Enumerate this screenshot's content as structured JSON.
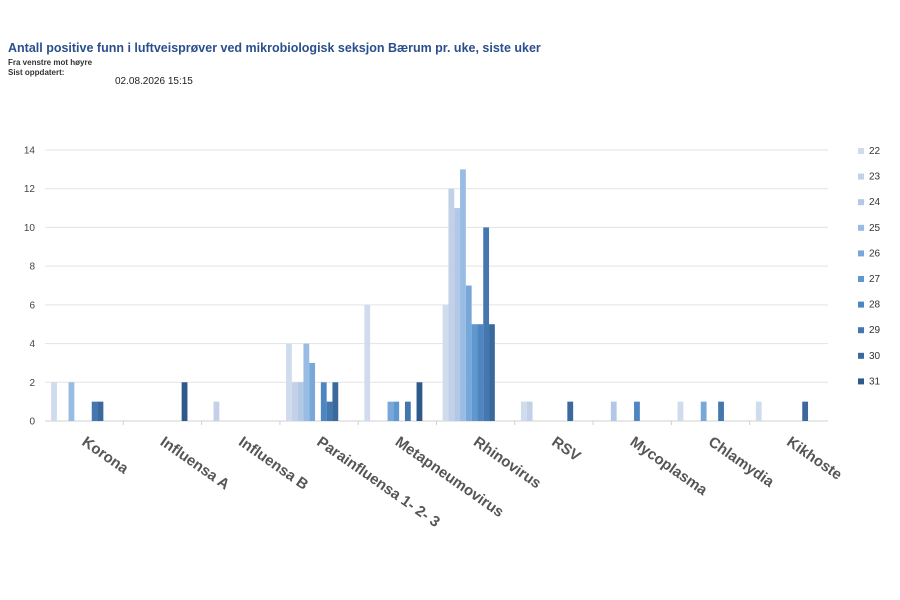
{
  "header": {
    "title": "Antall positive funn i luftveisprøver ved mikrobiologisk seksjon Bærum pr. uke, siste uker",
    "subtitle": "Fra venstre mot høyre",
    "updated_label": "Sist oppdatert:",
    "updated_value": "02.08.2026 15:15"
  },
  "chart_data": {
    "type": "bar",
    "title": "Antall positive funn i luftveisprøver ved mikrobiologisk seksjon Bærum pr. uke, siste uker",
    "xlabel": "",
    "ylabel": "",
    "ylim": [
      0,
      14
    ],
    "yticks": [
      0,
      2,
      4,
      6,
      8,
      10,
      12,
      14
    ],
    "grid": true,
    "legend_position": "right",
    "categories": [
      "Korona",
      "Influensa A",
      "Influensa B",
      "Parainfluensa 1- 2- 3",
      "Metapneumovirus",
      "Rhinovirus",
      "RSV",
      "Mycoplasma",
      "Chlamydia",
      "Kikhoste"
    ],
    "series": [
      {
        "name": "22",
        "color": "#cfdcee",
        "values": [
          2,
          0,
          0,
          4,
          6,
          6,
          1,
          0,
          1,
          1
        ]
      },
      {
        "name": "23",
        "color": "#c2d0e8",
        "values": [
          0,
          0,
          1,
          2,
          0,
          12,
          1,
          0,
          0,
          0
        ]
      },
      {
        "name": "24",
        "color": "#b2c8e6",
        "values": [
          0,
          0,
          0,
          2,
          0,
          11,
          0,
          1,
          0,
          0
        ]
      },
      {
        "name": "25",
        "color": "#98bce3",
        "values": [
          2,
          0,
          0,
          4,
          0,
          13,
          0,
          0,
          0,
          0
        ]
      },
      {
        "name": "26",
        "color": "#78a8d9",
        "values": [
          0,
          0,
          0,
          3,
          1,
          7,
          0,
          0,
          1,
          0
        ]
      },
      {
        "name": "27",
        "color": "#5f98cf",
        "values": [
          0,
          0,
          0,
          0,
          1,
          5,
          0,
          0,
          0,
          0
        ]
      },
      {
        "name": "28",
        "color": "#4d86c0",
        "values": [
          0,
          0,
          0,
          2,
          0,
          5,
          0,
          1,
          0,
          0
        ]
      },
      {
        "name": "29",
        "color": "#4377ad",
        "values": [
          1,
          0,
          0,
          1,
          1,
          10,
          0,
          0,
          1,
          0
        ]
      },
      {
        "name": "30",
        "color": "#3a6a9d",
        "values": [
          1,
          0,
          0,
          2,
          0,
          5,
          1,
          0,
          0,
          1
        ]
      },
      {
        "name": "31",
        "color": "#2e5a8a",
        "values": [
          0,
          2,
          0,
          0,
          2,
          0,
          0,
          0,
          0,
          0
        ]
      }
    ]
  }
}
